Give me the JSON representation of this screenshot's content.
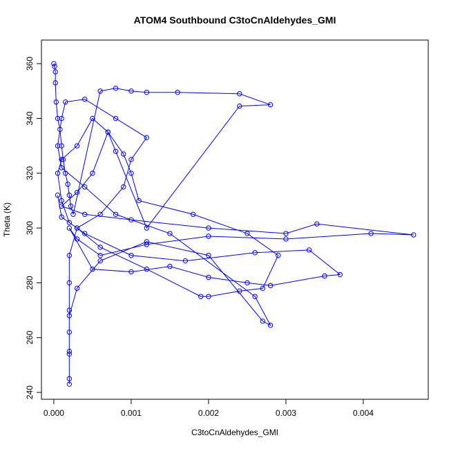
{
  "chart_data": {
    "type": "line",
    "title": "ATOM4 Southbound C3toCnAldehydes_GMI",
    "x_label": "C3toCnAldehydes_GMI",
    "y_label": "Theta (K)",
    "xlim": [
      -0.00016,
      0.00484
    ],
    "ylim": [
      237.5,
      368.6
    ],
    "xticks": [
      {
        "value": 0,
        "label": "0.000"
      },
      {
        "value": 0.001,
        "label": "0.001"
      },
      {
        "value": 0.002,
        "label": "0.002"
      },
      {
        "value": 0.003,
        "label": "0.003"
      },
      {
        "value": 0.004,
        "label": "0.004"
      }
    ],
    "yticks": [
      240,
      260,
      280,
      300,
      320,
      340,
      360
    ],
    "x": [
      0.0,
      1e-05,
      2e-05,
      2e-05,
      3e-05,
      5e-05,
      8e-05,
      0.0001,
      0.00012,
      0.00015,
      0.00018,
      0.0002,
      0.00022,
      0.00025,
      0.0006,
      0.0008,
      0.001,
      0.0012,
      0.0016,
      0.0024,
      0.0028,
      0.0024,
      0.0012,
      0.0008,
      0.0007,
      0.0005,
      0.0003,
      0.0001,
      0.0004,
      0.001,
      0.002,
      0.003,
      0.0034,
      0.00465,
      0.0041,
      0.003,
      0.002,
      0.0012,
      0.0006,
      0.0003,
      0.0002,
      0.0005,
      0.001,
      0.0015,
      0.002,
      0.0025,
      0.0028,
      0.0035,
      0.0037,
      0.0033,
      0.0026,
      0.0017,
      0.001,
      0.0004,
      0.0002,
      0.0001,
      5e-05,
      0.0001,
      0.0003,
      0.0005,
      0.0007,
      0.0009,
      0.001,
      0.0011,
      0.0018,
      0.0025,
      0.0029,
      0.0027,
      0.0024,
      0.002,
      0.0019,
      0.0012,
      0.0006,
      0.0003,
      0.0002,
      0.0002,
      0.0002,
      0.0002,
      0.0002,
      0.0002,
      0.0002,
      0.0002,
      0.0002,
      0.0003,
      0.0006,
      0.0012,
      0.002,
      0.0027,
      0.0028,
      0.0026,
      0.0015,
      0.0008,
      0.0004,
      0.0001,
      5e-05,
      0.0001,
      0.00015,
      0.0004,
      0.0008,
      0.0012,
      0.001,
      0.0009,
      0.0006,
      0.0003,
      0.0001,
      5e-05
    ],
    "series": [
      {
        "name": "Theta",
        "color": "#0000ff",
        "values": [
          360,
          359,
          357,
          353,
          346,
          340,
          336,
          330,
          325,
          320,
          316,
          312,
          308,
          305,
          350,
          351,
          350,
          349.5,
          349.5,
          349,
          345,
          344.5,
          300,
          328,
          335,
          320,
          313,
          308,
          305,
          303,
          300,
          298,
          301.5,
          297.5,
          298,
          296,
          297,
          294,
          290,
          296,
          300,
          285,
          284,
          286,
          282,
          280,
          279,
          282.5,
          283,
          292,
          291,
          288,
          290,
          298,
          302,
          310,
          320,
          325,
          330,
          340,
          335,
          327,
          320,
          310,
          305,
          298,
          290,
          278,
          277,
          275,
          275,
          285,
          293,
          300,
          290,
          280,
          270,
          262,
          254,
          245,
          243,
          255,
          268,
          278,
          288,
          295,
          290,
          266,
          264.5,
          275,
          298,
          305,
          315,
          322,
          330,
          340,
          346,
          347,
          340,
          333,
          325,
          315,
          305,
          300,
          304,
          312
        ]
      }
    ]
  }
}
